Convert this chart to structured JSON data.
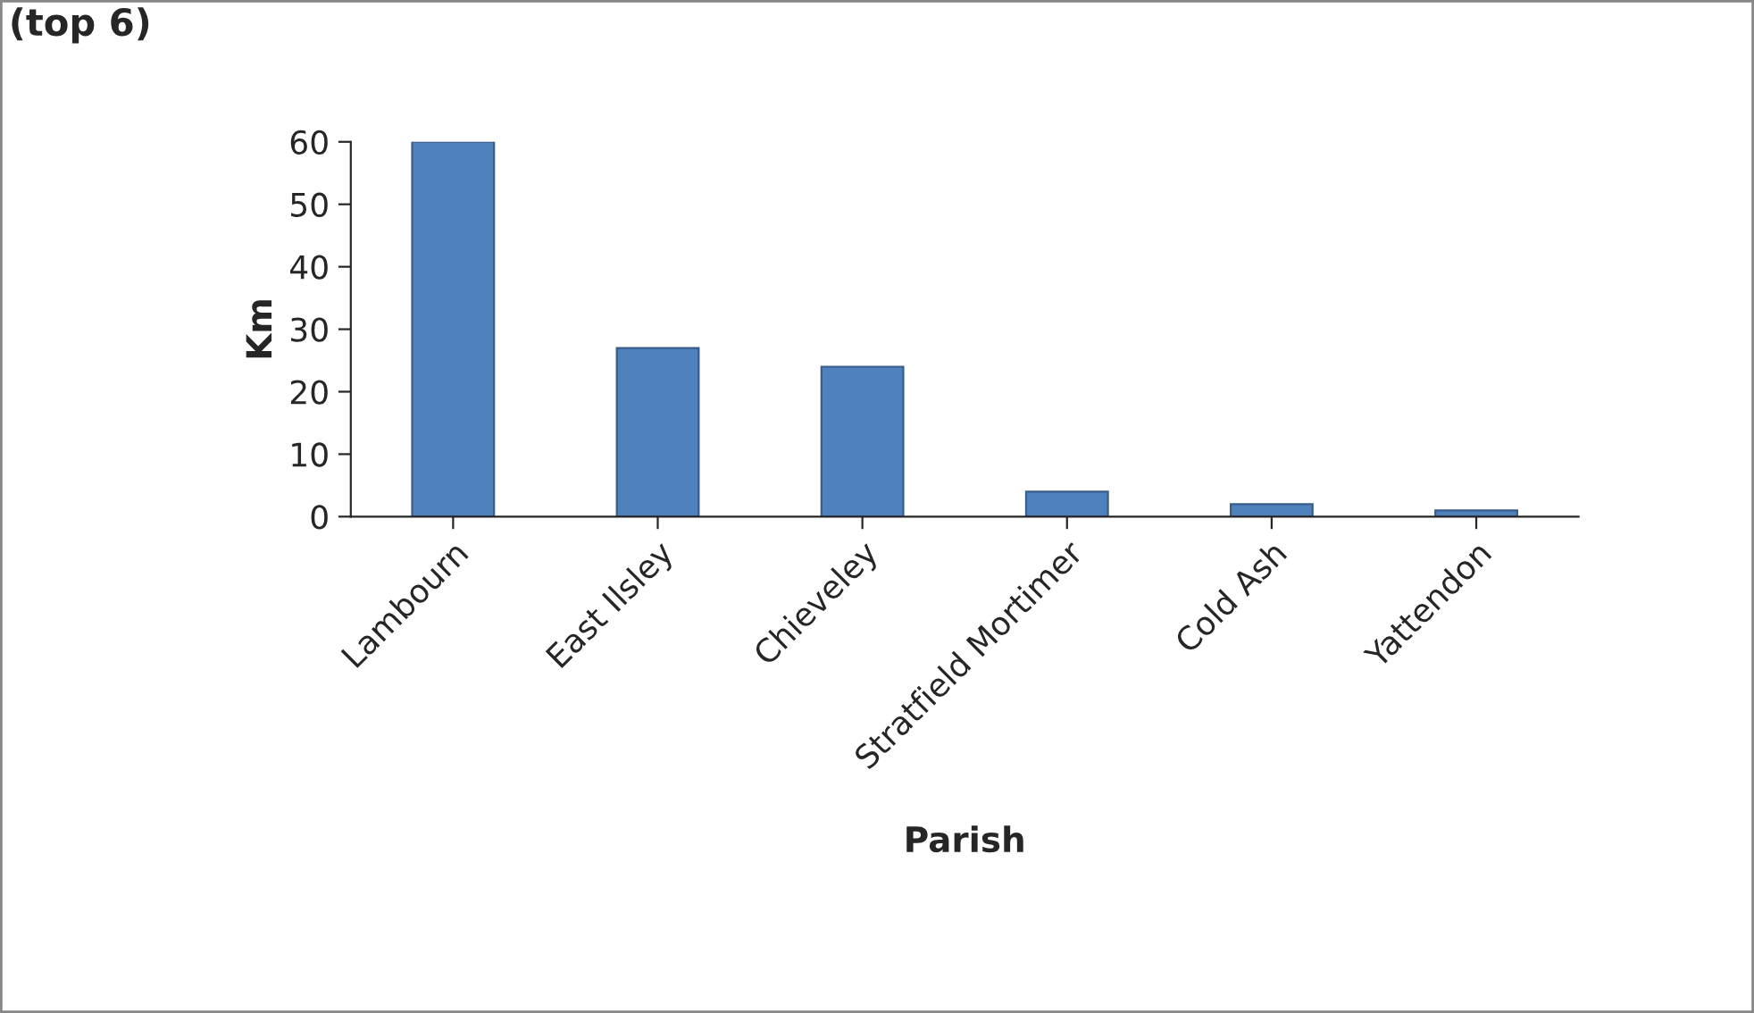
{
  "chart_data": {
    "type": "bar",
    "title": "(top 6)",
    "xlabel": "Parish",
    "ylabel": "Km",
    "categories": [
      "Lambourn",
      "East Ilsley",
      "Chieveley",
      "Stratfield Mortimer",
      "Cold Ash",
      "Yattendon"
    ],
    "values": [
      60,
      27,
      24,
      4,
      2,
      1
    ],
    "color": "#4f81bd",
    "ylim": [
      0,
      60
    ],
    "yticks": [
      0,
      10,
      20,
      30,
      40,
      50,
      60
    ],
    "grid": false,
    "legend": false
  }
}
